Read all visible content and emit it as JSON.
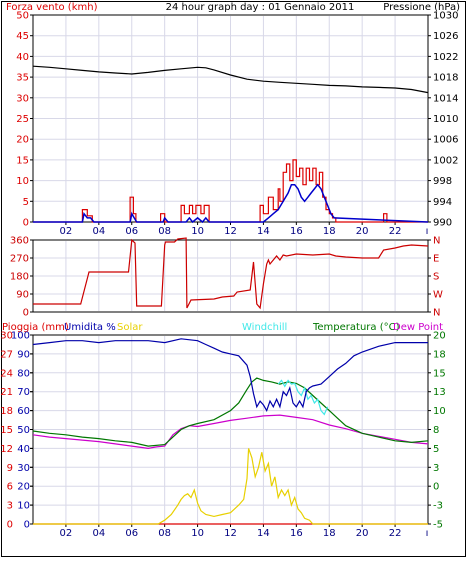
{
  "header": {
    "left_title": "Forza vento (kmh)",
    "center_title": "24 hour graph day : 01 Gennaio 2011",
    "right_title": "Pressione (hPa)"
  },
  "colors": {
    "wind": "#dd0000",
    "gust": "#0000cc",
    "pressure": "#000000",
    "direction": "#cc0000",
    "rain": "#dd0000",
    "humidity": "#0000aa",
    "solar": "#e8d000",
    "windchill": "#40e8e8",
    "temperature": "#007700",
    "dewpoint": "#cc00cc",
    "grid": "#d8d8e8"
  },
  "chart_data": [
    {
      "type": "line",
      "title": "24 hour graph day : 01 Gennaio 2011",
      "ylabel": "Forza vento (kmh)",
      "y2label": "Pressione (hPa)",
      "xlim": [
        0,
        24
      ],
      "ylim": [
        0,
        50
      ],
      "y2lim": [
        990,
        1030
      ],
      "x_ticks": [
        "02",
        "04",
        "06",
        "08",
        "10",
        "12",
        "14",
        "16",
        "18",
        "20",
        "22"
      ],
      "y_ticks": [
        "0",
        "5",
        "10",
        "15",
        "20",
        "25",
        "30",
        "35",
        "40",
        "45",
        "50"
      ],
      "y2_ticks": [
        "990",
        "994",
        "998",
        "1002",
        "1006",
        "1010",
        "1014",
        "1018",
        "1022",
        "1026",
        "1030"
      ],
      "series": [
        {
          "key": "pressure",
          "x": [
            0,
            1,
            2,
            3,
            4,
            5,
            6,
            7,
            8,
            9,
            10,
            10.5,
            11,
            12,
            13,
            14,
            15,
            16,
            17,
            18,
            19,
            20,
            21,
            22,
            23,
            24
          ],
          "y": [
            1020.1,
            1019.9,
            1019.6,
            1019.3,
            1019.0,
            1018.8,
            1018.6,
            1018.9,
            1019.3,
            1019.6,
            1019.9,
            1019.8,
            1019.4,
            1018.4,
            1017.6,
            1017.2,
            1017.0,
            1016.8,
            1016.6,
            1016.4,
            1016.3,
            1016.1,
            1016.0,
            1015.9,
            1015.6,
            1015.0
          ]
        },
        {
          "key": "wind",
          "x": [
            0,
            3.0,
            3.0,
            3.3,
            3.3,
            3.6,
            3.6,
            5.9,
            5.9,
            6.1,
            6.1,
            6.25,
            6.25,
            7.75,
            7.75,
            8.0,
            8.0,
            9.0,
            9.0,
            9.2,
            9.2,
            9.5,
            9.5,
            9.7,
            9.7,
            9.9,
            9.9,
            10.2,
            10.2,
            10.4,
            10.4,
            10.7,
            10.7,
            13.8,
            13.8,
            14.0,
            14.0,
            14.3,
            14.3,
            14.6,
            14.6,
            14.9,
            14.9,
            15.0,
            15.0,
            15.2,
            15.2,
            15.4,
            15.4,
            15.6,
            15.6,
            15.8,
            15.8,
            16.0,
            16.0,
            16.2,
            16.2,
            16.4,
            16.4,
            16.6,
            16.6,
            16.8,
            16.8,
            17.0,
            17.0,
            17.2,
            17.2,
            17.4,
            17.4,
            17.6,
            17.6,
            17.8,
            17.8,
            18.0,
            18.0,
            18.2,
            18.2,
            18.4,
            18.4,
            21.3,
            21.3,
            21.5,
            21.5,
            24
          ],
          "y": [
            0,
            0,
            3,
            3,
            1.5,
            1.5,
            0,
            0,
            6,
            6,
            2,
            2,
            0,
            0,
            2,
            2,
            0,
            0,
            4,
            4,
            2,
            2,
            4,
            4,
            2,
            2,
            4,
            4,
            2,
            2,
            4,
            4,
            0,
            0,
            4,
            4,
            2,
            2,
            6,
            6,
            3,
            3,
            8,
            8,
            5,
            5,
            12,
            12,
            14,
            14,
            10,
            10,
            15,
            15,
            11,
            11,
            13,
            13,
            9,
            9,
            13,
            13,
            10,
            10,
            13,
            13,
            9,
            9,
            12,
            12,
            6,
            6,
            3,
            3,
            2,
            2,
            1,
            1,
            0,
            0,
            2,
            2,
            0,
            0
          ]
        },
        {
          "key": "gust",
          "x": [
            0,
            3.0,
            3.1,
            3.3,
            3.5,
            3.7,
            5.9,
            6.0,
            6.15,
            6.3,
            7.9,
            8.0,
            8.2,
            9.3,
            9.5,
            9.7,
            10.0,
            10.3,
            10.5,
            10.7,
            14.0,
            14.3,
            14.6,
            14.9,
            15.2,
            15.5,
            15.7,
            15.9,
            16.1,
            16.3,
            16.5,
            16.7,
            16.9,
            17.1,
            17.3,
            17.5,
            17.7,
            17.9,
            18.1,
            18.3,
            24
          ],
          "y": [
            0,
            0,
            2,
            1,
            1,
            0,
            0,
            2,
            1,
            0,
            0,
            1,
            0,
            0,
            1,
            0,
            1,
            0,
            1,
            0,
            0,
            1,
            2,
            3,
            5,
            7,
            9,
            9,
            8,
            6,
            5,
            6,
            7,
            8,
            9,
            8,
            6,
            4,
            2,
            1,
            0
          ]
        }
      ]
    },
    {
      "type": "line",
      "ylabel": "",
      "xlim": [
        0,
        24
      ],
      "ylim": [
        0,
        360
      ],
      "y_ticks": [
        "0",
        "90",
        "180",
        "270",
        "360"
      ],
      "y2_ticks": [
        "N",
        "W",
        "S",
        "E",
        "N"
      ],
      "series": [
        {
          "key": "direction",
          "x": [
            0,
            2.9,
            3.4,
            5.8,
            6.0,
            6.2,
            6.3,
            7.8,
            8.0,
            8.05,
            8.6,
            8.8,
            9.3,
            9.35,
            9.6,
            11.0,
            11.5,
            12.2,
            12.4,
            13.2,
            13.4,
            13.6,
            13.8,
            14.0,
            14.2,
            14.3,
            14.4,
            14.8,
            15.0,
            15.2,
            15.4,
            16.0,
            17.0,
            18.0,
            18.4,
            19.0,
            20.0,
            21.0,
            21.3,
            22.0,
            22.5,
            23.0,
            24
          ],
          "y": [
            40,
            40,
            200,
            200,
            360,
            345,
            30,
            30,
            335,
            350,
            350,
            365,
            370,
            20,
            60,
            65,
            75,
            80,
            100,
            110,
            250,
            40,
            20,
            140,
            240,
            260,
            240,
            280,
            260,
            285,
            280,
            290,
            285,
            290,
            280,
            275,
            270,
            270,
            310,
            320,
            330,
            335,
            330
          ]
        }
      ]
    },
    {
      "type": "line",
      "ylabel": "Pioggia (mm)",
      "y2label": "Temperatura (°C)",
      "xlim": [
        0,
        24
      ],
      "ylim": [
        0,
        100
      ],
      "y2lim": [
        -5,
        20
      ],
      "legend": [
        "Pioggia (mm)",
        "Umidita %",
        "Solar",
        "Windchill",
        "Temperatura (°C)",
        "Dew Point"
      ],
      "y_ticks": [
        "0",
        "10",
        "20",
        "30",
        "40",
        "50",
        "60",
        "70",
        "80",
        "90",
        "100"
      ],
      "y_ticks_rain": [
        "0",
        "3",
        "6",
        "9",
        "12",
        "15",
        "18",
        "21",
        "24",
        "27",
        "30"
      ],
      "y2_ticks": [
        "-5",
        "-3",
        "0",
        "3",
        "5",
        "8",
        "10",
        "13",
        "15",
        "18",
        "20"
      ],
      "series": [
        {
          "key": "humidity",
          "x": [
            0,
            1,
            2,
            3,
            4,
            5,
            6,
            7,
            8,
            9,
            10,
            10.5,
            11.0,
            11.5,
            12.0,
            12.5,
            13.0,
            13.2,
            13.4,
            13.6,
            13.8,
            14.0,
            14.2,
            14.4,
            14.6,
            14.8,
            15.0,
            15.2,
            15.4,
            15.6,
            15.8,
            16.0,
            16.2,
            16.4,
            16.6,
            16.8,
            17.0,
            17.5,
            18.0,
            18.5,
            19.0,
            19.5,
            20.0,
            21.0,
            22.0,
            23.0,
            24
          ],
          "y": [
            95,
            96,
            97,
            97,
            96,
            97,
            97,
            97,
            96,
            98,
            97,
            95,
            93,
            91,
            90,
            89,
            84,
            78,
            69,
            62,
            65,
            63,
            60,
            65,
            62,
            66,
            62,
            70,
            68,
            72,
            64,
            62,
            65,
            62,
            70,
            72,
            73,
            74,
            78,
            82,
            85,
            89,
            91,
            94,
            96,
            96,
            96
          ]
        },
        {
          "key": "temperature",
          "x": [
            0,
            1,
            2,
            3,
            4,
            5,
            6,
            7,
            8,
            8.5,
            9,
            9.5,
            10,
            11,
            12,
            12.5,
            13,
            13.3,
            13.6,
            14.0,
            14.5,
            15.0,
            15.5,
            16.0,
            16.5,
            17.0,
            17.5,
            18.0,
            18.5,
            19,
            20,
            21,
            22,
            23,
            24
          ],
          "y": [
            7.3,
            7.0,
            6.8,
            6.5,
            6.3,
            6.0,
            5.8,
            5.3,
            5.5,
            6.5,
            7.5,
            8.0,
            8.3,
            8.8,
            10.0,
            11.0,
            12.8,
            13.8,
            14.3,
            14.0,
            13.8,
            13.5,
            13.8,
            13.6,
            13.0,
            12.0,
            11.0,
            10.0,
            9.0,
            8.0,
            7.0,
            6.5,
            6.0,
            5.8,
            6.0
          ]
        },
        {
          "key": "windchill",
          "x": [
            14.9,
            15.1,
            15.3,
            15.5,
            15.7,
            15.9,
            16.1,
            16.3,
            16.5,
            16.7,
            16.9,
            17.1,
            17.3,
            17.5,
            17.7,
            17.9
          ],
          "y": [
            13.5,
            14.0,
            13.2,
            14.0,
            13.5,
            13.6,
            12.5,
            12.0,
            13.0,
            11.5,
            12.0,
            11.0,
            11.5,
            10.0,
            9.5,
            10.5
          ]
        },
        {
          "key": "dewpoint",
          "x": [
            0,
            1,
            2,
            3,
            4,
            5,
            6,
            7,
            7.5,
            8,
            8.5,
            9,
            9.5,
            10,
            11,
            12,
            13,
            14,
            15,
            16,
            17,
            18,
            19,
            20,
            21,
            22,
            23,
            24
          ],
          "y": [
            6.8,
            6.5,
            6.3,
            6.1,
            5.9,
            5.6,
            5.3,
            5.0,
            5.2,
            5.3,
            6.8,
            7.6,
            8.0,
            7.9,
            8.3,
            8.7,
            9.0,
            9.3,
            9.4,
            9.1,
            8.8,
            8.1,
            7.6,
            7.0,
            6.6,
            6.2,
            5.8,
            5.6
          ]
        },
        {
          "key": "solar",
          "x": [
            0,
            7.6,
            8.0,
            8.4,
            8.8,
            9.0,
            9.2,
            9.4,
            9.6,
            9.8,
            10.0,
            10.2,
            10.5,
            11.0,
            11.5,
            12.0,
            12.5,
            12.8,
            13.0,
            13.1,
            13.3,
            13.5,
            13.7,
            13.9,
            14.1,
            14.3,
            14.5,
            14.7,
            14.9,
            15.1,
            15.3,
            15.5,
            15.7,
            15.9,
            16.1,
            16.3,
            16.5,
            16.8,
            17.0,
            24
          ],
          "y": [
            0,
            0,
            2,
            5,
            10,
            13,
            15,
            16,
            14,
            18,
            11,
            7,
            5,
            4,
            5,
            6,
            10,
            13,
            24,
            40,
            35,
            25,
            30,
            38,
            28,
            32,
            20,
            25,
            14,
            18,
            15,
            18,
            10,
            14,
            8,
            6,
            3,
            2,
            0,
            0
          ]
        },
        {
          "key": "rain",
          "x": [
            0,
            24
          ],
          "y": [
            0,
            0
          ]
        }
      ]
    }
  ]
}
